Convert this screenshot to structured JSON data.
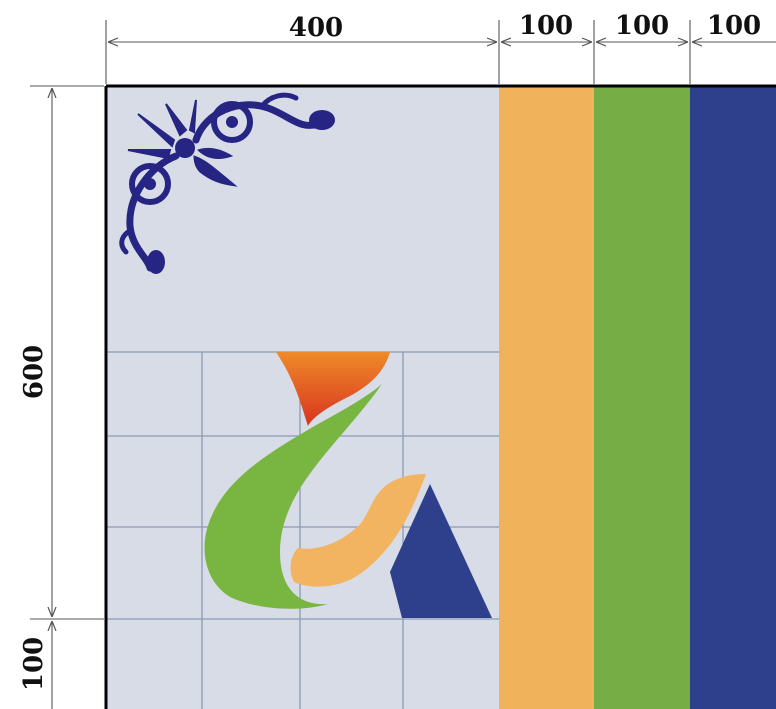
{
  "dimensions": {
    "top": [
      "400",
      "100",
      "100",
      "100"
    ],
    "left_height": "600",
    "left_bottom": "100"
  },
  "colors": {
    "panel_background": "#d7dce6",
    "stripe_orange": "#f0b35c",
    "stripe_green": "#76ad45",
    "stripe_blue": "#2e3f8c",
    "ornament": "#272583",
    "flame_top": "#ef8a2a",
    "flame_bottom": "#d8331f",
    "leaf_green": "#78b541",
    "leaf_orange": "#f2b460",
    "triangle_blue": "#2e3f8c",
    "grid_line": "#8a9cb6",
    "dimension_line": "#555555",
    "frame": "#000000"
  },
  "icons": {
    "ornament": "floral-corner-ornament-icon",
    "logo": "abstract-flame-leaf-logo-icon"
  }
}
